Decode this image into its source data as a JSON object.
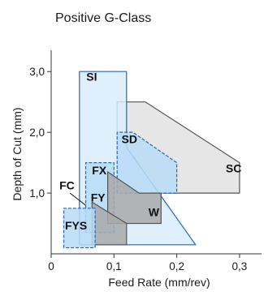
{
  "chart_data": {
    "type": "area",
    "title": "Positive G-Class",
    "xlabel": "Feed Rate (mm/rev)",
    "ylabel": "Depth of Cut (mm)",
    "xlim": [
      0,
      0.335
    ],
    "ylim": [
      0,
      3.35
    ],
    "x_ticks": [
      {
        "value": 0,
        "label": "0"
      },
      {
        "value": 0.1,
        "label": "0,1"
      },
      {
        "value": 0.2,
        "label": "0,2"
      },
      {
        "value": 0.3,
        "label": "0,3"
      }
    ],
    "y_ticks": [
      {
        "value": 1.0,
        "label": "1,0"
      },
      {
        "value": 2.0,
        "label": "2,0"
      },
      {
        "value": 3.0,
        "label": "3,0"
      }
    ],
    "grid": false,
    "colors": {
      "blue_fill": "#d9ecfb",
      "blue_dark_fill": "#b7dcf6",
      "blue_edge": "#2a64c0",
      "gray_fill": "#e2e2e2",
      "gray_dark_fill": "#a9a9a9",
      "gray_edge": "#555555"
    },
    "regions": [
      {
        "label": "SC",
        "label_at": [
          0.278,
          1.34
        ],
        "style": "gray",
        "outline": [
          [
            0.105,
            1.0
          ],
          [
            0.105,
            2.5
          ],
          [
            0.15,
            2.5
          ],
          [
            0.3,
            1.5
          ],
          [
            0.3,
            1.0
          ]
        ]
      },
      {
        "label": "SI",
        "label_at": [
          0.056,
          2.85
        ],
        "style": "blue",
        "outline": [
          [
            0.045,
            0.15
          ],
          [
            0.045,
            3.0
          ],
          [
            0.12,
            3.0
          ],
          [
            0.12,
            1.75
          ],
          [
            0.23,
            0.15
          ]
        ]
      },
      {
        "label": "SD",
        "label_at": [
          0.112,
          1.82
        ],
        "style": "blue_dark",
        "outline": [
          [
            0.105,
            1.0
          ],
          [
            0.105,
            2.0
          ],
          [
            0.13,
            2.0
          ],
          [
            0.2,
            1.5
          ],
          [
            0.2,
            1.0
          ]
        ]
      },
      {
        "label": "FX",
        "label_at": [
          0.065,
          1.31
        ],
        "style": "blue_dark",
        "outline": [
          [
            0.055,
            0.35
          ],
          [
            0.055,
            1.5
          ],
          [
            0.1,
            1.5
          ],
          [
            0.1,
            0.35
          ]
        ]
      },
      {
        "label": "W",
        "label_at": [
          0.155,
          0.62
        ],
        "style": "gray_dark",
        "outline": [
          [
            0.09,
            0.5
          ],
          [
            0.09,
            1.35
          ],
          [
            0.14,
            1.0
          ],
          [
            0.175,
            1.0
          ],
          [
            0.175,
            0.5
          ]
        ]
      },
      {
        "label": "FY",
        "label_at": [
          0.063,
          0.86
        ],
        "style": "gray_dark",
        "outline": [
          [
            0.065,
            0.15
          ],
          [
            0.065,
            0.85
          ],
          [
            0.12,
            0.5
          ],
          [
            0.12,
            0.15
          ]
        ]
      },
      {
        "label": "FC",
        "label_at": [
          0.013,
          1.06
        ],
        "style": "gray",
        "outline": [
          [
            0.03,
            1.0
          ],
          [
            0.055,
            0.8
          ]
        ]
      },
      {
        "label": "FYS",
        "label_at": [
          0.022,
          0.4
        ],
        "style": "blue_dark",
        "outline": [
          [
            0.02,
            0.1
          ],
          [
            0.02,
            0.75
          ],
          [
            0.07,
            0.75
          ],
          [
            0.07,
            0.1
          ]
        ]
      }
    ]
  }
}
